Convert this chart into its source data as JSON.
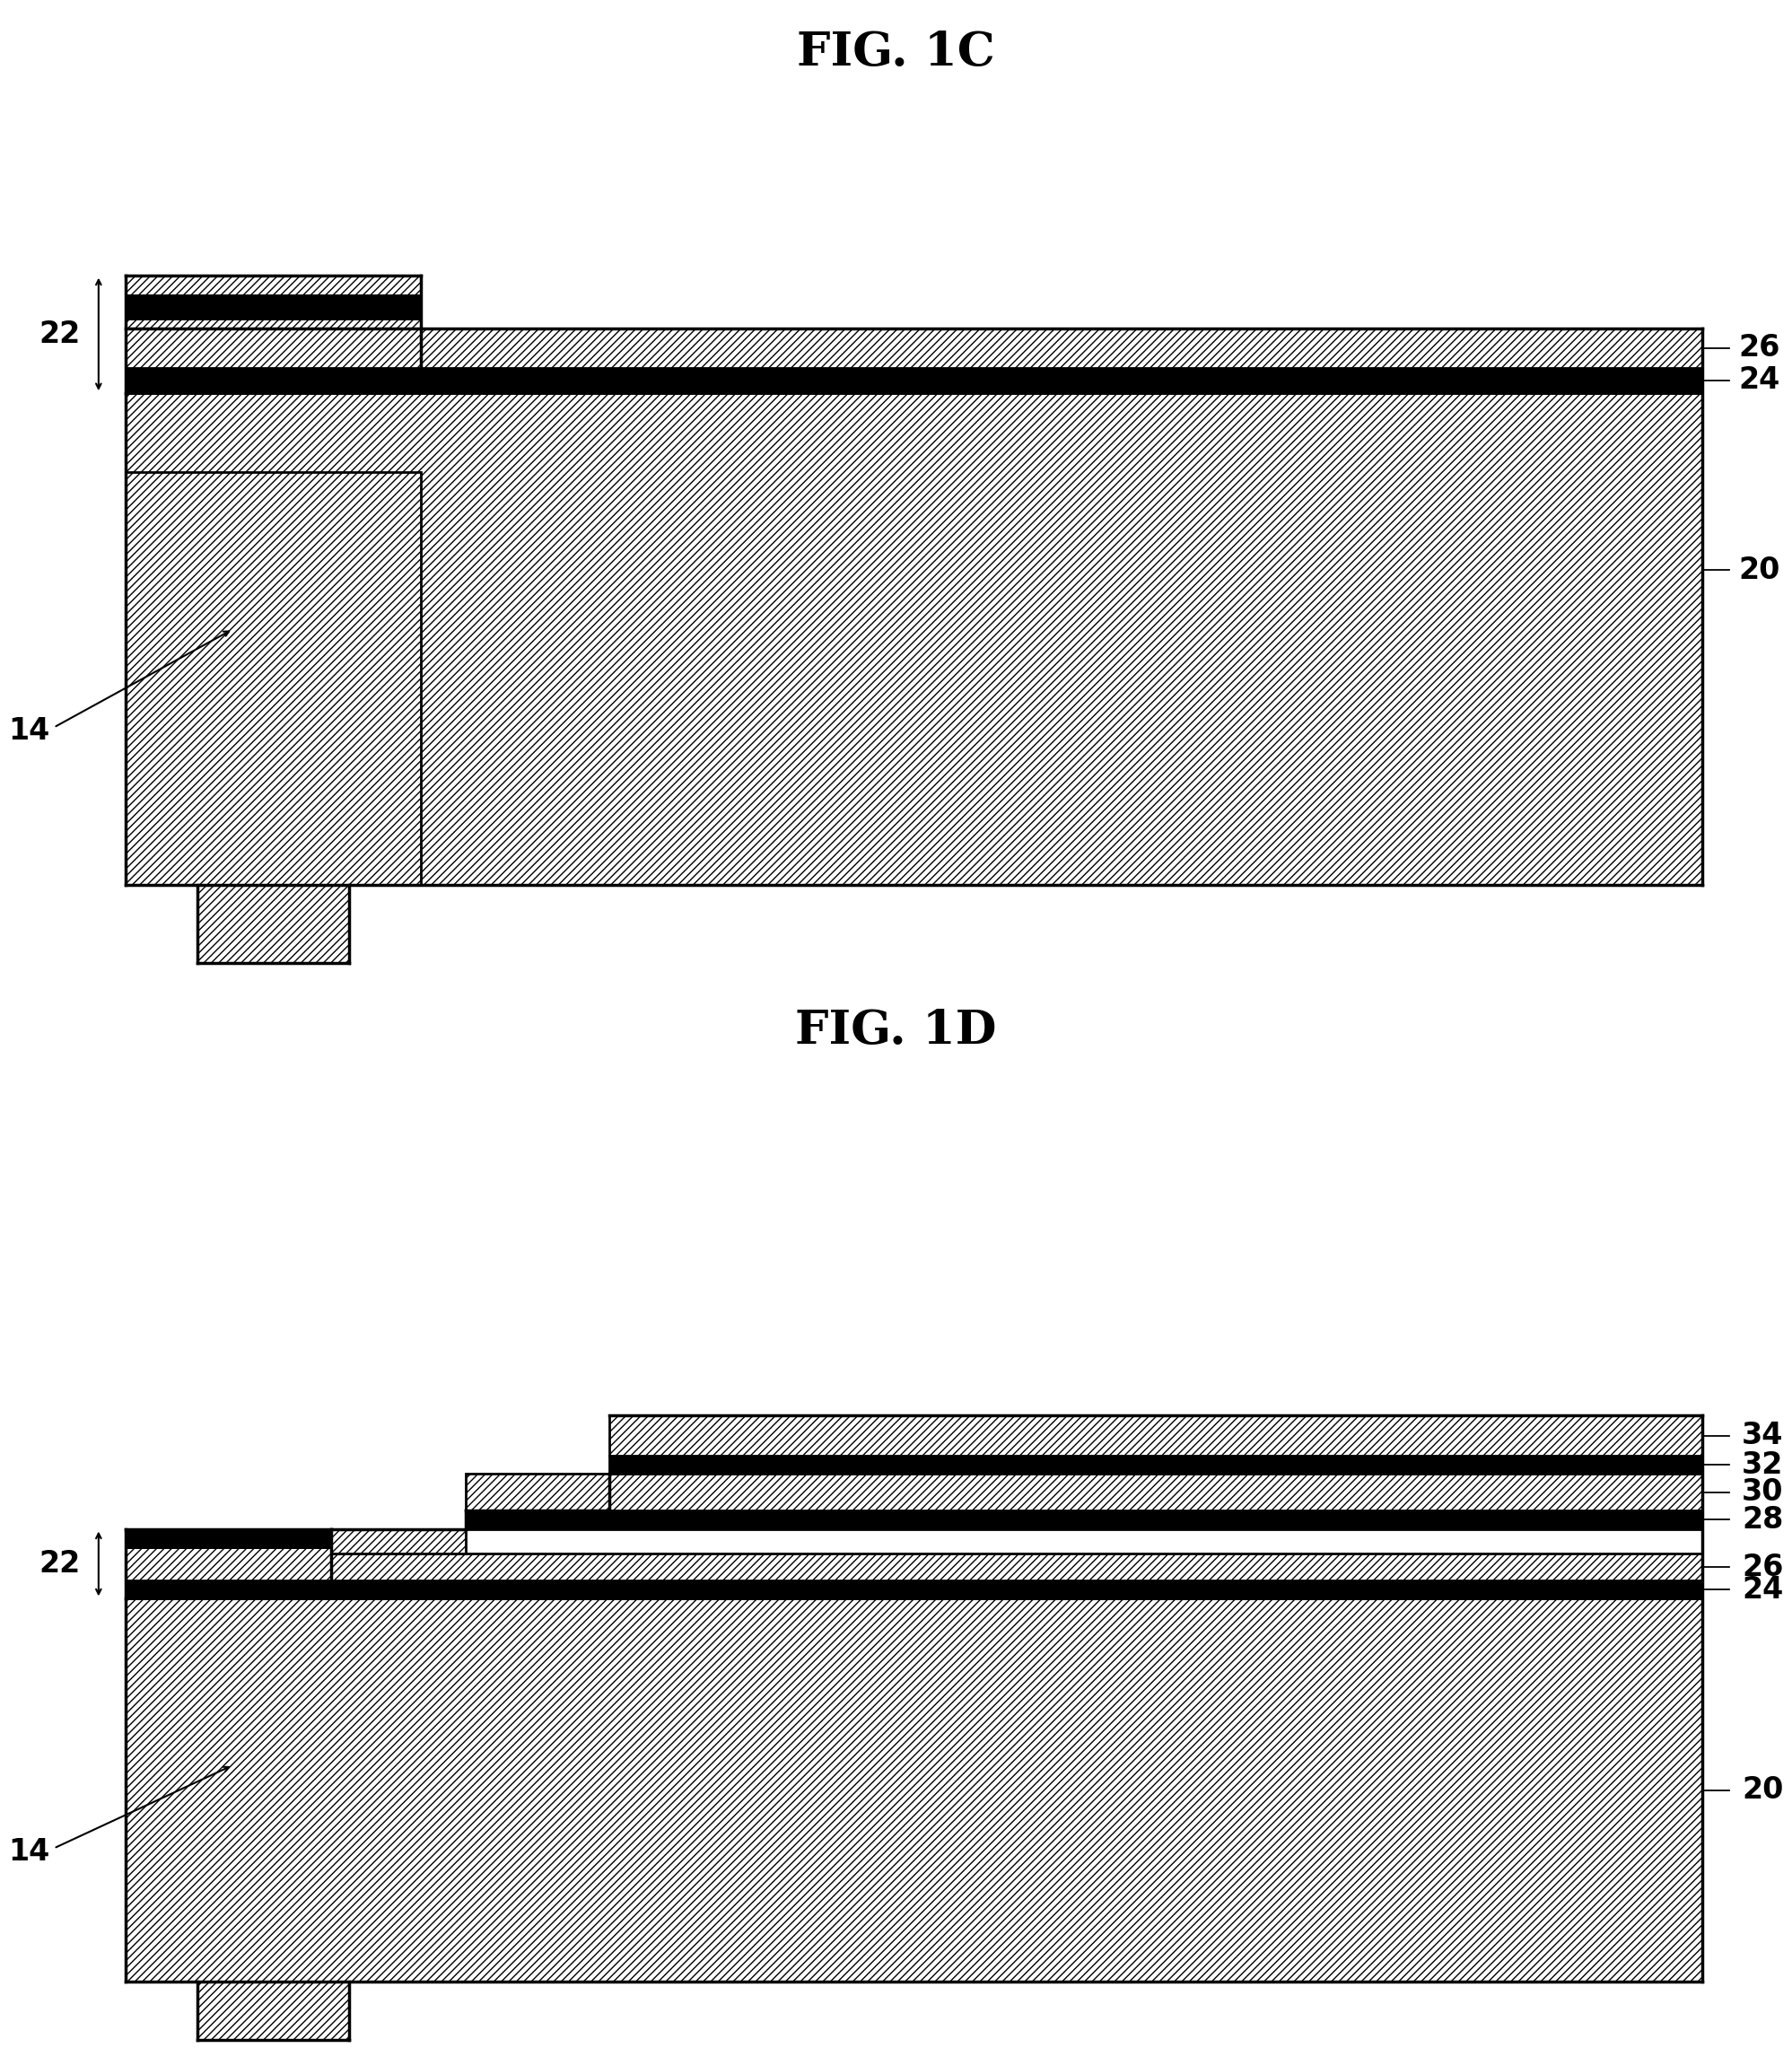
{
  "fig_title_1": "FIG. 1C",
  "fig_title_2": "FIG. 1D",
  "title_fontsize": 38,
  "label_fontsize": 24,
  "bg_color": "#ffffff",
  "line_color": "#000000"
}
